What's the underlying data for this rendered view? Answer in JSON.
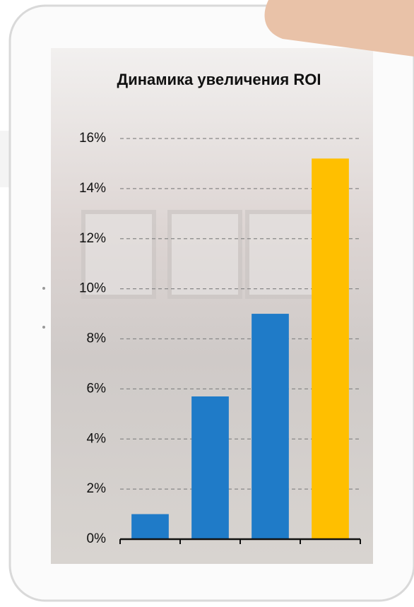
{
  "chart_data": {
    "type": "bar",
    "title": "Динамика увеличения ROI",
    "categories": [
      null,
      null,
      null,
      null
    ],
    "values": [
      1.0,
      5.7,
      9.0,
      15.2
    ],
    "colors": [
      "#1f7bc8",
      "#1f7bc8",
      "#1f7bc8",
      "#ffbf00"
    ],
    "ylim": [
      0,
      16
    ],
    "yticks": [
      {
        "value": 0,
        "label": "0%"
      },
      {
        "value": 2,
        "label": "2%"
      },
      {
        "value": 4,
        "label": "4%"
      },
      {
        "value": 6,
        "label": "6%"
      },
      {
        "value": 8,
        "label": "8%"
      },
      {
        "value": 10,
        "label": "10%"
      },
      {
        "value": 12,
        "label": "12%"
      },
      {
        "value": 14,
        "label": "14%"
      },
      {
        "value": 16,
        "label": "16%"
      }
    ],
    "grid": true
  }
}
